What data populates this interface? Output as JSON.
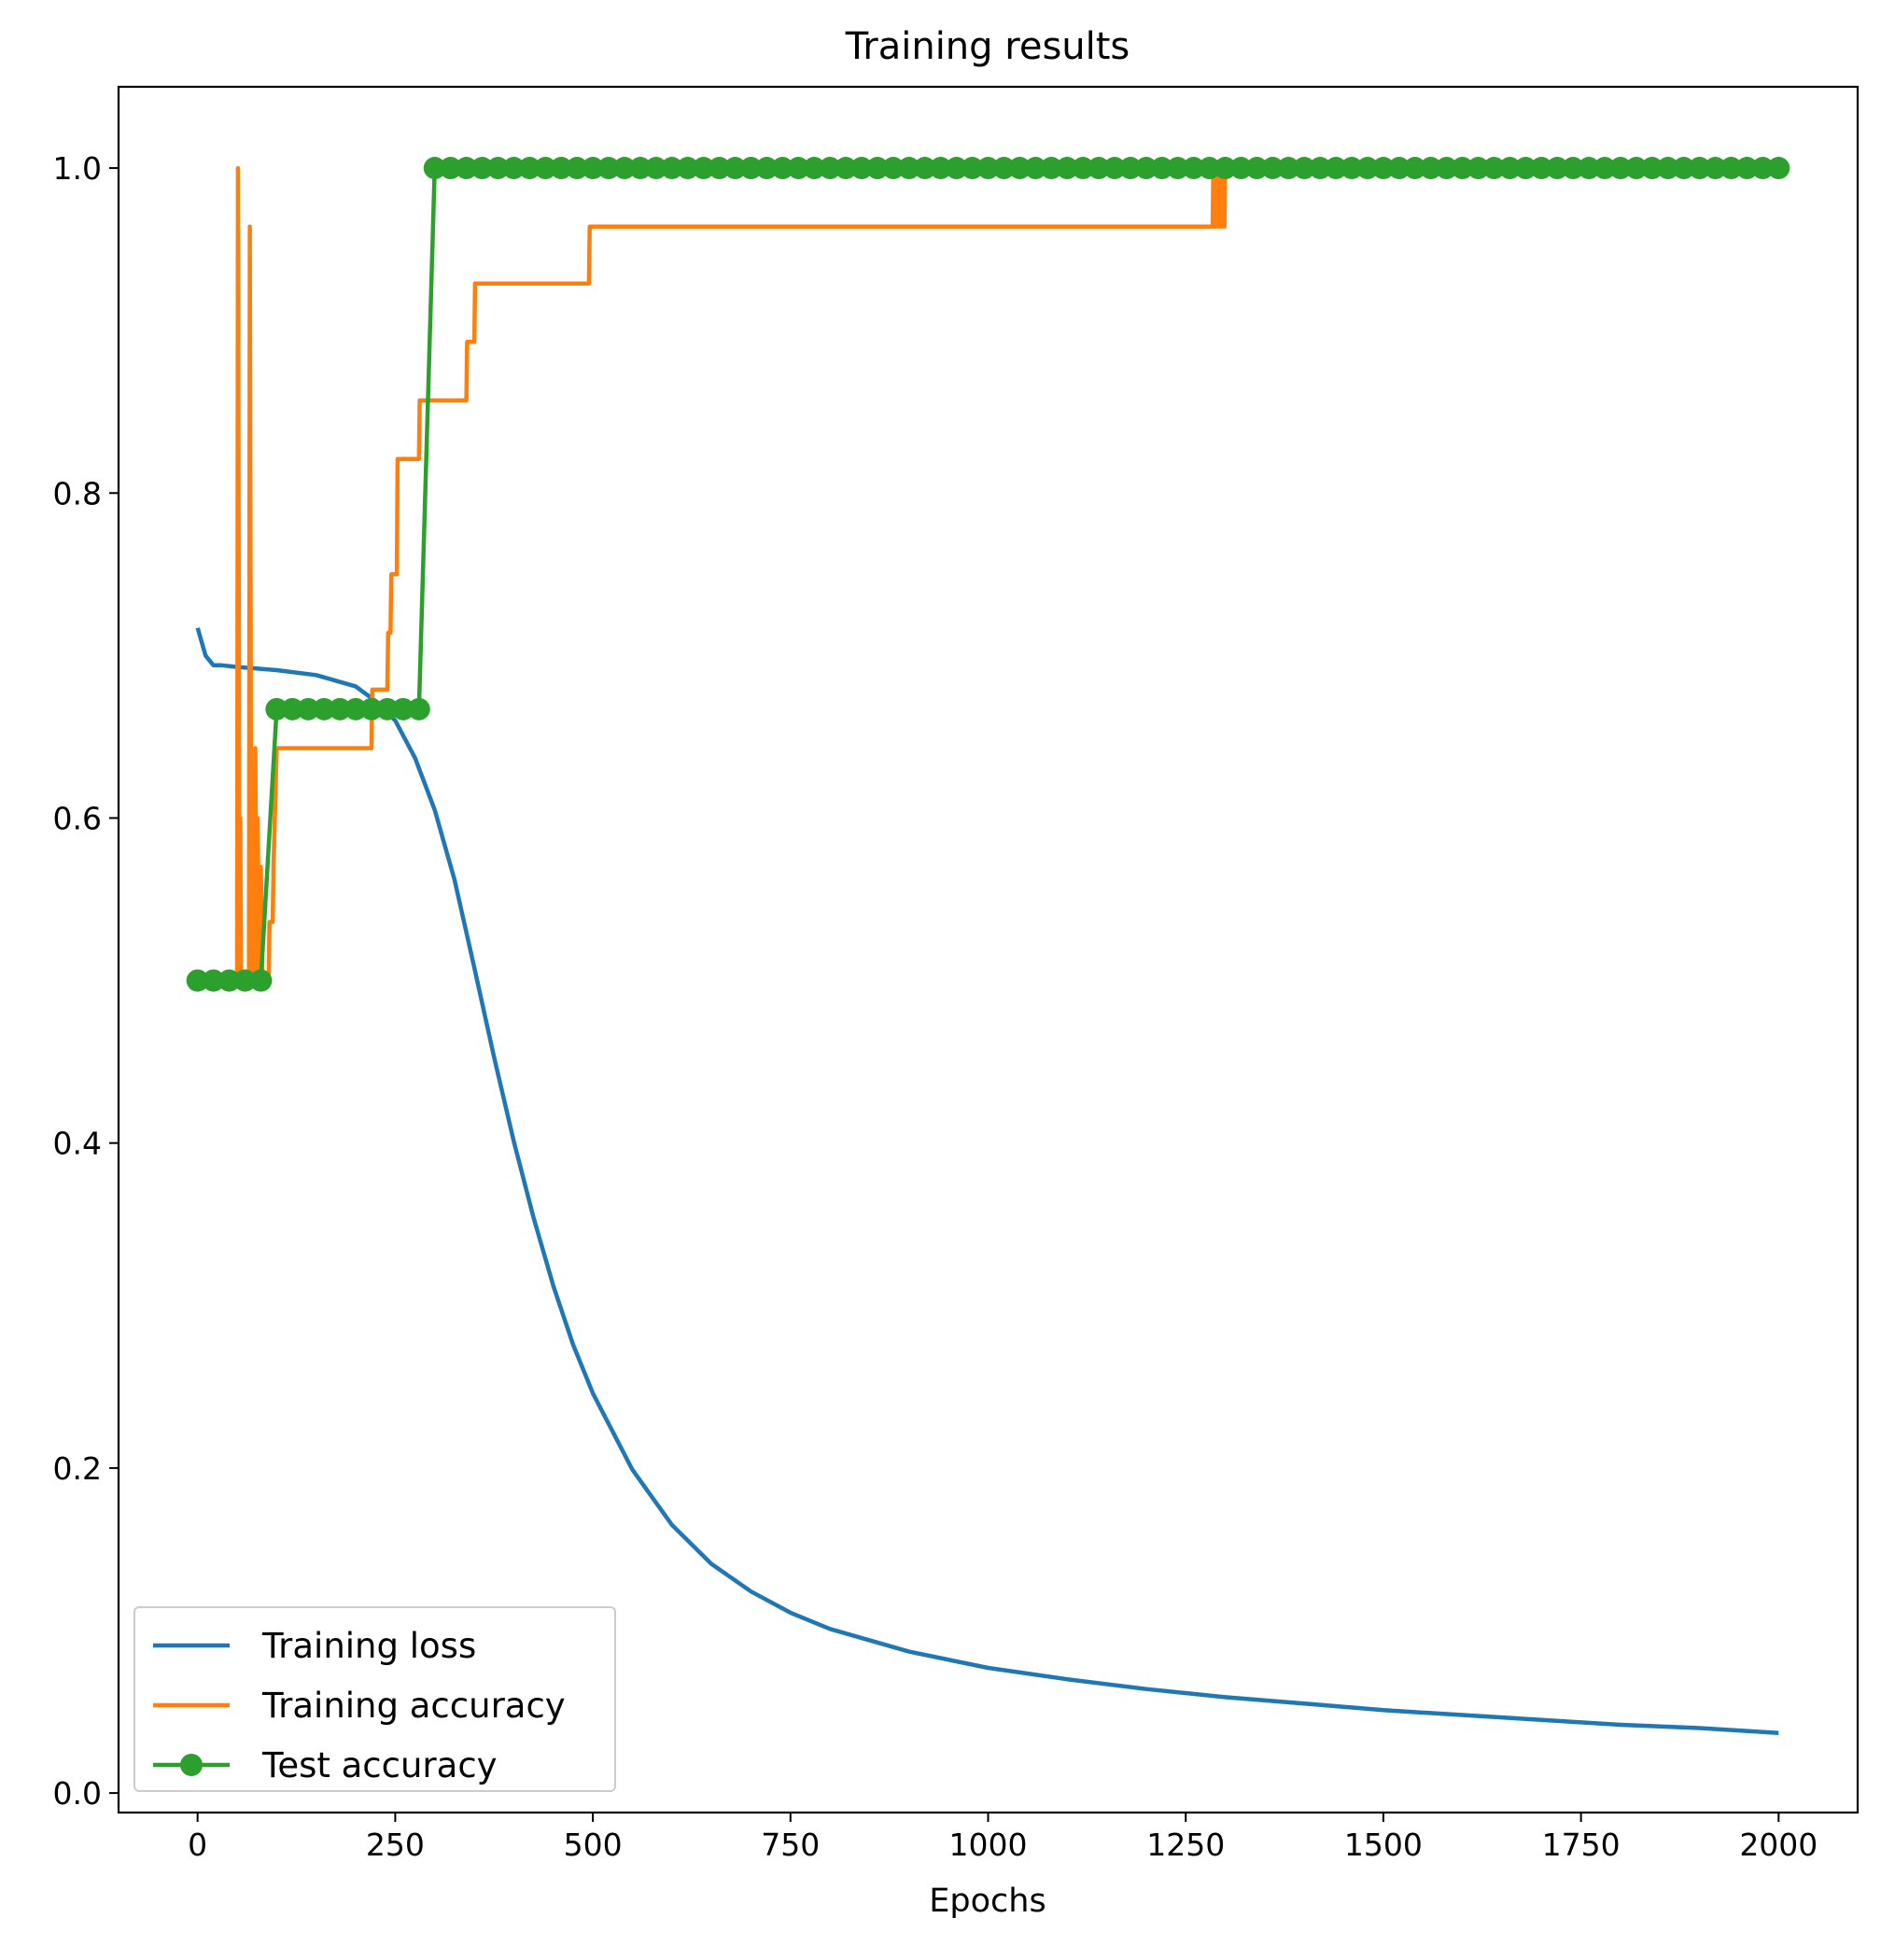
{
  "chart_data": {
    "type": "line",
    "title": "Training results",
    "xlabel": "Epochs",
    "ylabel": "",
    "xlim": [
      -100,
      2100
    ],
    "ylim": [
      -0.012,
      1.05
    ],
    "xticks": [
      0,
      250,
      500,
      750,
      1000,
      1250,
      1500,
      1750,
      2000
    ],
    "xtick_labels": [
      "0",
      "250",
      "500",
      "750",
      "1000",
      "1250",
      "1500",
      "1750",
      "2000"
    ],
    "yticks": [
      0.0,
      0.2,
      0.4,
      0.6,
      0.8,
      1.0
    ],
    "ytick_labels": [
      "0.0",
      "0.2",
      "0.4",
      "0.6",
      "0.8",
      "1.0"
    ],
    "grid": false,
    "legend_position": "lower-left",
    "series": [
      {
        "name": "Training loss",
        "color": "#1f77b4",
        "marker": "none",
        "x": [
          0,
          10,
          20,
          30,
          50,
          100,
          150,
          200,
          225,
          250,
          275,
          300,
          325,
          350,
          375,
          400,
          425,
          450,
          475,
          500,
          550,
          600,
          650,
          700,
          750,
          800,
          900,
          1000,
          1100,
          1200,
          1300,
          1400,
          1500,
          1600,
          1700,
          1800,
          1900,
          2000
        ],
        "y": [
          0.717,
          0.7,
          0.694,
          0.694,
          0.693,
          0.691,
          0.688,
          0.681,
          0.672,
          0.66,
          0.637,
          0.605,
          0.562,
          0.508,
          0.453,
          0.401,
          0.354,
          0.312,
          0.276,
          0.246,
          0.199,
          0.165,
          0.141,
          0.124,
          0.111,
          0.101,
          0.087,
          0.077,
          0.07,
          0.064,
          0.059,
          0.055,
          0.051,
          0.048,
          0.045,
          0.042,
          0.04,
          0.037
        ]
      },
      {
        "name": "Training accuracy",
        "color": "#ff7f0e",
        "marker": "none",
        "x": [
          0,
          50,
          51,
          53,
          54,
          55,
          65,
          66,
          68,
          70,
          71,
          73,
          75,
          76,
          78,
          80,
          82,
          85,
          90,
          91,
          95,
          96,
          100,
          101,
          220,
          221,
          240,
          241,
          244,
          245,
          252,
          253,
          280,
          281,
          340,
          341,
          350,
          351,
          495,
          496,
          1284,
          1285,
          1287,
          1288,
          1290,
          1291,
          1293,
          1294,
          1296,
          1297,
          1299,
          1300,
          2000
        ],
        "y": [
          0.5,
          0.5,
          1.0,
          0.5,
          0.6,
          0.5,
          0.5,
          0.964,
          0.5,
          0.6,
          0.5,
          0.643,
          0.5,
          0.6,
          0.5,
          0.57,
          0.5,
          0.5,
          0.5,
          0.536,
          0.536,
          0.57,
          0.643,
          0.643,
          0.643,
          0.679,
          0.679,
          0.714,
          0.714,
          0.75,
          0.75,
          0.821,
          0.821,
          0.857,
          0.857,
          0.893,
          0.893,
          0.929,
          0.929,
          0.964,
          0.964,
          1.0,
          0.964,
          1.0,
          0.964,
          1.0,
          0.964,
          1.0,
          0.964,
          1.0,
          0.964,
          1.0,
          1.0
        ]
      },
      {
        "name": "Test accuracy",
        "color": "#2ca02c",
        "marker": "circle",
        "x": [
          0,
          20,
          40,
          60,
          80,
          100,
          120,
          140,
          160,
          180,
          200,
          220,
          240,
          260,
          280,
          300,
          320,
          340,
          360,
          380,
          400,
          420,
          440,
          460,
          480,
          500,
          520,
          540,
          560,
          580,
          600,
          620,
          640,
          660,
          680,
          700,
          720,
          740,
          760,
          780,
          800,
          820,
          840,
          860,
          880,
          900,
          920,
          940,
          960,
          980,
          1000,
          1020,
          1040,
          1060,
          1080,
          1100,
          1120,
          1140,
          1160,
          1180,
          1200,
          1220,
          1240,
          1260,
          1280,
          1300,
          1320,
          1340,
          1360,
          1380,
          1400,
          1420,
          1440,
          1460,
          1480,
          1500,
          1520,
          1540,
          1560,
          1580,
          1600,
          1620,
          1640,
          1660,
          1680,
          1700,
          1720,
          1740,
          1760,
          1780,
          1800,
          1820,
          1840,
          1860,
          1880,
          1900,
          1920,
          1940,
          1960,
          1980,
          2000
        ],
        "y": [
          0.5,
          0.5,
          0.5,
          0.5,
          0.5,
          0.667,
          0.667,
          0.667,
          0.667,
          0.667,
          0.667,
          0.667,
          0.667,
          0.667,
          0.667,
          1.0,
          1.0,
          1.0,
          1.0,
          1.0,
          1.0,
          1.0,
          1.0,
          1.0,
          1.0,
          1.0,
          1.0,
          1.0,
          1.0,
          1.0,
          1.0,
          1.0,
          1.0,
          1.0,
          1.0,
          1.0,
          1.0,
          1.0,
          1.0,
          1.0,
          1.0,
          1.0,
          1.0,
          1.0,
          1.0,
          1.0,
          1.0,
          1.0,
          1.0,
          1.0,
          1.0,
          1.0,
          1.0,
          1.0,
          1.0,
          1.0,
          1.0,
          1.0,
          1.0,
          1.0,
          1.0,
          1.0,
          1.0,
          1.0,
          1.0,
          1.0,
          1.0,
          1.0,
          1.0,
          1.0,
          1.0,
          1.0,
          1.0,
          1.0,
          1.0,
          1.0,
          1.0,
          1.0,
          1.0,
          1.0,
          1.0,
          1.0,
          1.0,
          1.0,
          1.0,
          1.0,
          1.0,
          1.0,
          1.0,
          1.0,
          1.0,
          1.0,
          1.0,
          1.0,
          1.0,
          1.0,
          1.0,
          1.0,
          1.0,
          1.0,
          1.0
        ]
      }
    ]
  }
}
